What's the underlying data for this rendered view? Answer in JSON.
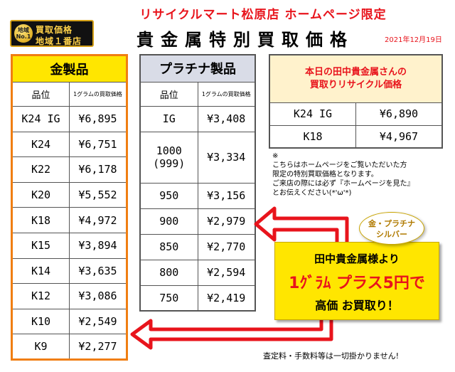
{
  "header": {
    "top_text": "リサイクルマート松原店 ホームページ限定",
    "main_title": "貴金属特別買取価格",
    "date": "2021年12月19日"
  },
  "badge": {
    "no1": "地域\nNo.1",
    "line1": "買取価格",
    "line2": "地域１番店"
  },
  "gold": {
    "title": "金製品",
    "col_grade": "品位",
    "col_price": "1グラムの買取価格",
    "rows": [
      {
        "grade": "K24 IG",
        "price": "¥6,895"
      },
      {
        "grade": "K24",
        "price": "¥6,751"
      },
      {
        "grade": "K22",
        "price": "¥6,178"
      },
      {
        "grade": "K20",
        "price": "¥5,552"
      },
      {
        "grade": "K18",
        "price": "¥4,972"
      },
      {
        "grade": "K15",
        "price": "¥3,894"
      },
      {
        "grade": "K14",
        "price": "¥3,635"
      },
      {
        "grade": "K12",
        "price": "¥3,086"
      },
      {
        "grade": "K10",
        "price": "¥2,549"
      },
      {
        "grade": "K9",
        "price": "¥2,277"
      }
    ]
  },
  "platinum": {
    "title": "プラチナ製品",
    "col_grade": "品位",
    "col_price": "1グラムの買取価格",
    "rows": [
      {
        "grade": "IG",
        "price": "¥3,408"
      },
      {
        "grade": "1000\n(999)",
        "price": "¥3,334"
      },
      {
        "grade": "950",
        "price": "¥3,156"
      },
      {
        "grade": "900",
        "price": "¥2,979"
      },
      {
        "grade": "850",
        "price": "¥2,770"
      },
      {
        "grade": "800",
        "price": "¥2,594"
      },
      {
        "grade": "750",
        "price": "¥2,419"
      }
    ]
  },
  "today": {
    "title_line1": "本日の田中貴金属さんの",
    "title_line2": "買取りリサイクル価格",
    "rows": [
      {
        "grade": "K24 IG",
        "price": "¥6,890"
      },
      {
        "grade": "K18",
        "price": "¥4,967"
      }
    ]
  },
  "note": {
    "mark": "※",
    "line1": "こちらはホームページをご覧いただいた方",
    "line2": "限定の特別買取価格となります。",
    "line3": "ご来店の際には必ず『ホームページを見た』",
    "line4": "とお伝えください(*'ω'*)"
  },
  "bubble": {
    "line1": "金・プラチナ",
    "line2": "シルバー"
  },
  "promo": {
    "line1": "田中貴金属様より",
    "line2": "1ｸﾞﾗﾑ プラス5円で",
    "line3": "高価 お買取り！"
  },
  "footer": "査定料・手数料等は一切掛かりません!",
  "colors": {
    "accent_red": "#e8141c",
    "gold_header": "#ffe600",
    "gold_border": "#f07e12",
    "platinum_header": "#d9dce7",
    "promo_bg": "#ffe600"
  }
}
